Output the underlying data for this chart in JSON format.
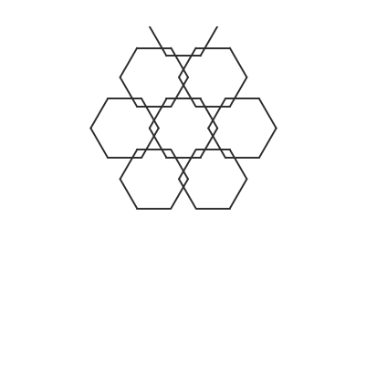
{
  "bg_color": "#ffffff",
  "bond_color": "#2d2d2d",
  "text_color": "#2d2d2d",
  "figsize": [
    4.02,
    4.3
  ],
  "dpi": 100
}
